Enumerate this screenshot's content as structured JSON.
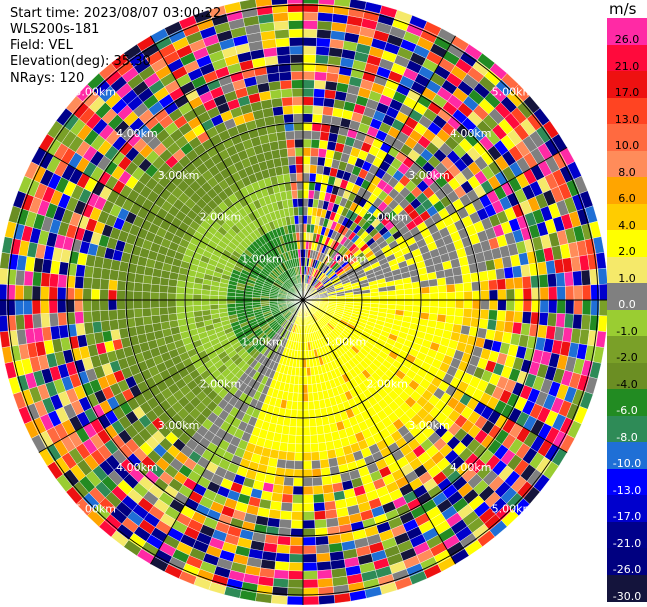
{
  "info": {
    "start_time": "Start time: 2023/08/07 03:00:22",
    "instrument": "WLS200s-181",
    "field": "Field: VEL",
    "elevation": "Elevation(deg): 35.30",
    "nrays": "NRays: 120"
  },
  "rings": [
    {
      "km": 1,
      "label": "1.00km"
    },
    {
      "km": 2,
      "label": "2.00km"
    },
    {
      "km": 3,
      "label": "3.00km"
    },
    {
      "km": 4,
      "label": "4.00km"
    },
    {
      "km": 5,
      "label": "5.00km"
    }
  ],
  "colorbar": {
    "units": "m/s",
    "levels": [
      {
        "label": "26.0",
        "color": "#ff2aa5"
      },
      {
        "label": "21.0",
        "color": "#ff0a3c"
      },
      {
        "label": "17.0",
        "color": "#ee1111"
      },
      {
        "label": "13.0",
        "color": "#ff4422"
      },
      {
        "label": "10.0",
        "color": "#ff6a40"
      },
      {
        "label": "8.0",
        "color": "#ff8c5a"
      },
      {
        "label": "6.0",
        "color": "#ffa500"
      },
      {
        "label": "4.0",
        "color": "#ffcc00"
      },
      {
        "label": "2.0",
        "color": "#ffff00"
      },
      {
        "label": "1.0",
        "color": "#f5e96a"
      },
      {
        "label": "0.0",
        "color": "#808080"
      },
      {
        "label": "-1.0",
        "color": "#9acd32"
      },
      {
        "label": "-2.0",
        "color": "#7aa028"
      },
      {
        "label": "-4.0",
        "color": "#6b8e23"
      },
      {
        "label": "-6.0",
        "color": "#228b22"
      },
      {
        "label": "-8.0",
        "color": "#2e8b57"
      },
      {
        "label": "-10.0",
        "color": "#1f6fd6"
      },
      {
        "label": "-13.0",
        "color": "#0000ff"
      },
      {
        "label": "-17.0",
        "color": "#0000cd"
      },
      {
        "label": "-21.0",
        "color": "#00008b"
      },
      {
        "label": "-26.0",
        "color": "#000080"
      },
      {
        "label": "-30.0",
        "color": "#14143c"
      }
    ]
  }
}
